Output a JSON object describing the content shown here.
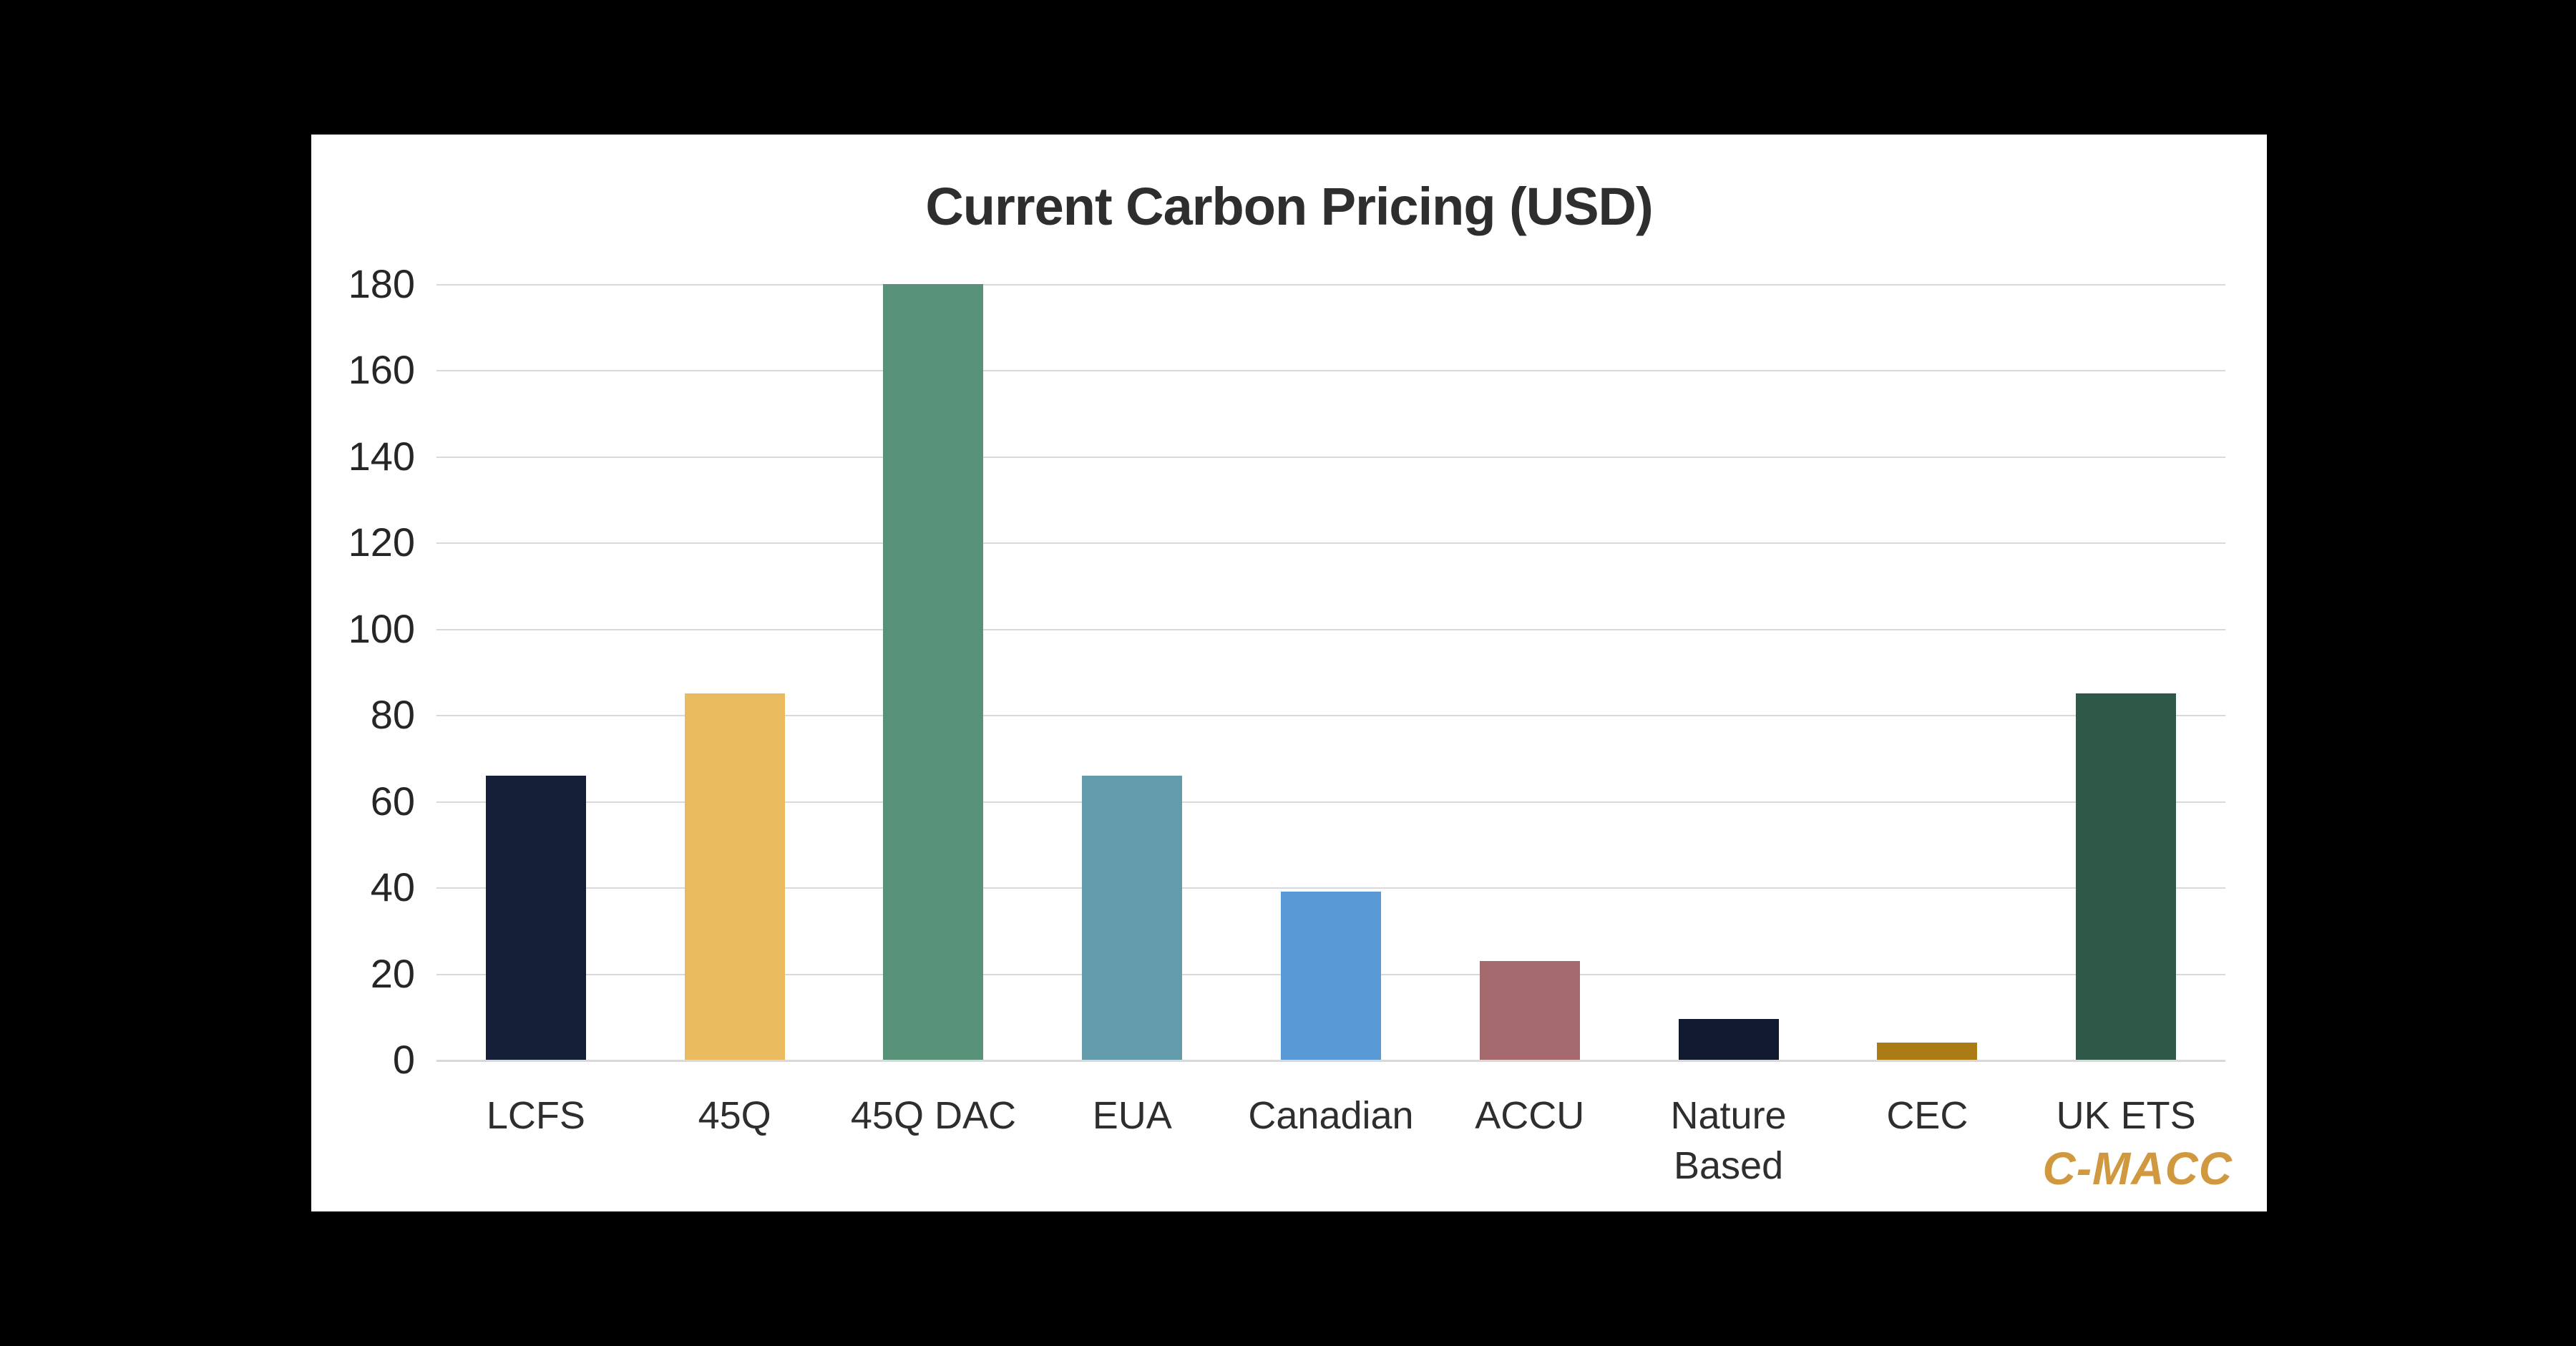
{
  "background_color": "#000000",
  "panel_color": "#ffffff",
  "chart_data": {
    "type": "bar",
    "title": "Current Carbon Pricing (USD)",
    "categories": [
      "LCFS",
      "45Q",
      "45Q DAC",
      "EUA",
      "Canadian",
      "ACCU",
      "Nature Based",
      "CEC",
      "UK ETS"
    ],
    "values": [
      66,
      85,
      180,
      66,
      39,
      23,
      9.5,
      4,
      85
    ],
    "bar_colors": [
      "#141e37",
      "#eaba5e",
      "#579178",
      "#639bab",
      "#5999d6",
      "#a46a6d",
      "#121a30",
      "#ab7c15",
      "#305848"
    ],
    "xlabel": "",
    "ylabel": "",
    "ylim": [
      0,
      180
    ],
    "yticks": [
      0,
      20,
      40,
      60,
      80,
      100,
      120,
      140,
      160,
      180
    ],
    "grid": "horizontal",
    "gridline_color": "#d9d9d9",
    "legend": "none",
    "title_color": "#2e2e2e",
    "tick_label_color": "#262626"
  },
  "watermark": {
    "text": "C-MACC",
    "color": "#d0983f"
  }
}
